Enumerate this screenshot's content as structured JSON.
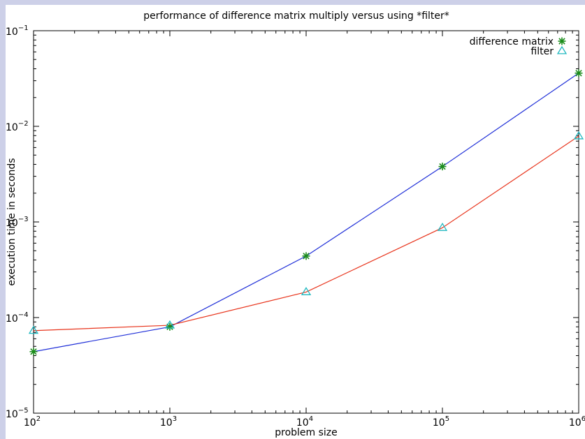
{
  "chart_data": {
    "type": "line",
    "title": "performance of difference matrix multiply versus using *filter*",
    "xlabel": "problem size",
    "ylabel": "execution time in seconds",
    "xscale": "log",
    "yscale": "log",
    "xlim": [
      100,
      1000000
    ],
    "ylim": [
      1e-05,
      0.1
    ],
    "x": [
      100,
      1000,
      10000,
      100000,
      1000000
    ],
    "x_ticks": [
      {
        "value": 100,
        "base": "10",
        "exp": "2"
      },
      {
        "value": 1000,
        "base": "10",
        "exp": "3"
      },
      {
        "value": 10000,
        "base": "10",
        "exp": "4"
      },
      {
        "value": 100000,
        "base": "10",
        "exp": "5"
      },
      {
        "value": 1000000,
        "base": "10",
        "exp": "6"
      }
    ],
    "y_ticks": [
      {
        "value": 1e-05,
        "base": "10",
        "exp": "−5"
      },
      {
        "value": 0.0001,
        "base": "10",
        "exp": "−4"
      },
      {
        "value": 0.001,
        "base": "10",
        "exp": "−3"
      },
      {
        "value": 0.01,
        "base": "10",
        "exp": "−2"
      },
      {
        "value": 0.1,
        "base": "10",
        "exp": "−1"
      }
    ],
    "series": [
      {
        "name": "difference matrix",
        "values": [
          4.4e-05,
          8e-05,
          0.00044,
          0.0038,
          0.036
        ],
        "line_color": "#1f2fd8",
        "marker": "asterisk",
        "marker_color": "#1a8c1a"
      },
      {
        "name": "filter",
        "values": [
          7.3e-05,
          8.3e-05,
          0.000185,
          0.00087,
          0.0079
        ],
        "line_color": "#e8341c",
        "marker": "triangle",
        "marker_color": "#20b8c0"
      }
    ],
    "legend_position": "top-right",
    "grid": false
  }
}
